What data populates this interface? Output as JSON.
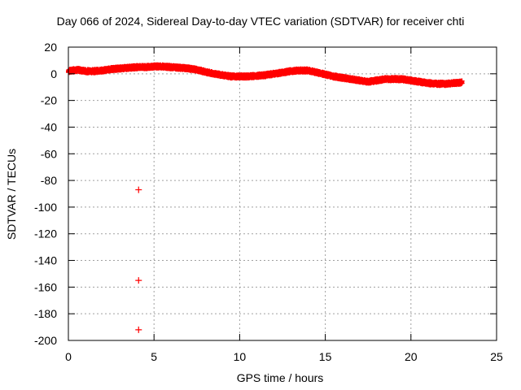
{
  "chart_data": {
    "type": "scatter",
    "title": "Day 066 of 2024, Sidereal Day-to-day VTEC variation (SDTVAR) for receiver chti",
    "xlabel": "GPS time / hours",
    "ylabel": "SDTVAR / TECUs",
    "xlim": [
      0,
      25
    ],
    "ylim": [
      -200,
      20
    ],
    "xticks": [
      0,
      5,
      10,
      15,
      20,
      25
    ],
    "yticks": [
      20,
      0,
      -20,
      -40,
      -60,
      -80,
      -100,
      -120,
      -140,
      -160,
      -180,
      -200
    ],
    "grid": true,
    "legend": "none",
    "series": [
      {
        "name": "SDTVAR",
        "color": "#ff0000",
        "marker": "plus",
        "trend": {
          "x": [
            0,
            0.5,
            1,
            1.5,
            2,
            2.5,
            3,
            3.5,
            4,
            4.5,
            5,
            5.5,
            6,
            6.5,
            7,
            7.5,
            8,
            8.5,
            9,
            9.5,
            10,
            10.5,
            11,
            11.5,
            12,
            12.5,
            13,
            13.5,
            14,
            14.5,
            15,
            15.5,
            16,
            16.5,
            17,
            17.5,
            18,
            18.5,
            19,
            19.5,
            20,
            20.5,
            21,
            21.5,
            22,
            22.5,
            23
          ],
          "y": [
            2,
            3,
            2,
            2,
            2.5,
            3.5,
            4,
            4.5,
            5,
            5,
            5.5,
            5.5,
            5,
            4.5,
            4,
            3,
            1.5,
            0,
            -1,
            -2,
            -2,
            -2,
            -1.5,
            -1,
            0,
            1,
            2,
            2.5,
            2.5,
            1,
            -0.5,
            -2,
            -3,
            -4,
            -5,
            -6,
            -5,
            -4,
            -4,
            -4,
            -5,
            -6,
            -7,
            -7.5,
            -7.5,
            -7,
            -6.5
          ]
        },
        "outliers": [
          {
            "x": 4.1,
            "y": -87
          },
          {
            "x": 4.1,
            "y": -155
          },
          {
            "x": 4.1,
            "y": -192
          }
        ]
      }
    ]
  }
}
